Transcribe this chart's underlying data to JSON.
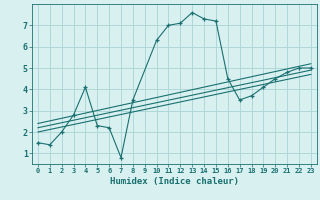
{
  "xlabel": "Humidex (Indice chaleur)",
  "bg_color": "#d8f0f0",
  "grid_color": "#b0d8d8",
  "line_color": "#1a7070",
  "xlim": [
    -0.5,
    23.5
  ],
  "ylim": [
    0.5,
    8.0
  ],
  "xticks": [
    0,
    1,
    2,
    3,
    4,
    5,
    6,
    7,
    8,
    9,
    10,
    11,
    12,
    13,
    14,
    15,
    16,
    17,
    18,
    19,
    20,
    21,
    22,
    23
  ],
  "yticks": [
    1,
    2,
    3,
    4,
    5,
    6,
    7
  ],
  "series1_x": [
    0,
    1,
    2,
    3,
    4,
    5,
    6,
    7,
    8,
    10,
    11,
    12,
    13,
    14,
    15,
    16,
    17,
    18,
    19,
    20,
    21,
    22,
    23
  ],
  "series1_y": [
    1.5,
    1.4,
    2.0,
    2.8,
    4.1,
    2.3,
    2.2,
    0.8,
    3.5,
    6.3,
    7.0,
    7.1,
    7.6,
    7.3,
    7.2,
    4.5,
    3.5,
    3.7,
    4.1,
    4.5,
    4.8,
    5.0,
    5.0
  ],
  "series2_x": [
    0,
    23
  ],
  "series2_y": [
    2.0,
    4.7
  ],
  "series3_x": [
    0,
    23
  ],
  "series3_y": [
    2.2,
    4.9
  ],
  "series4_x": [
    0,
    23
  ],
  "series4_y": [
    2.4,
    5.2
  ]
}
